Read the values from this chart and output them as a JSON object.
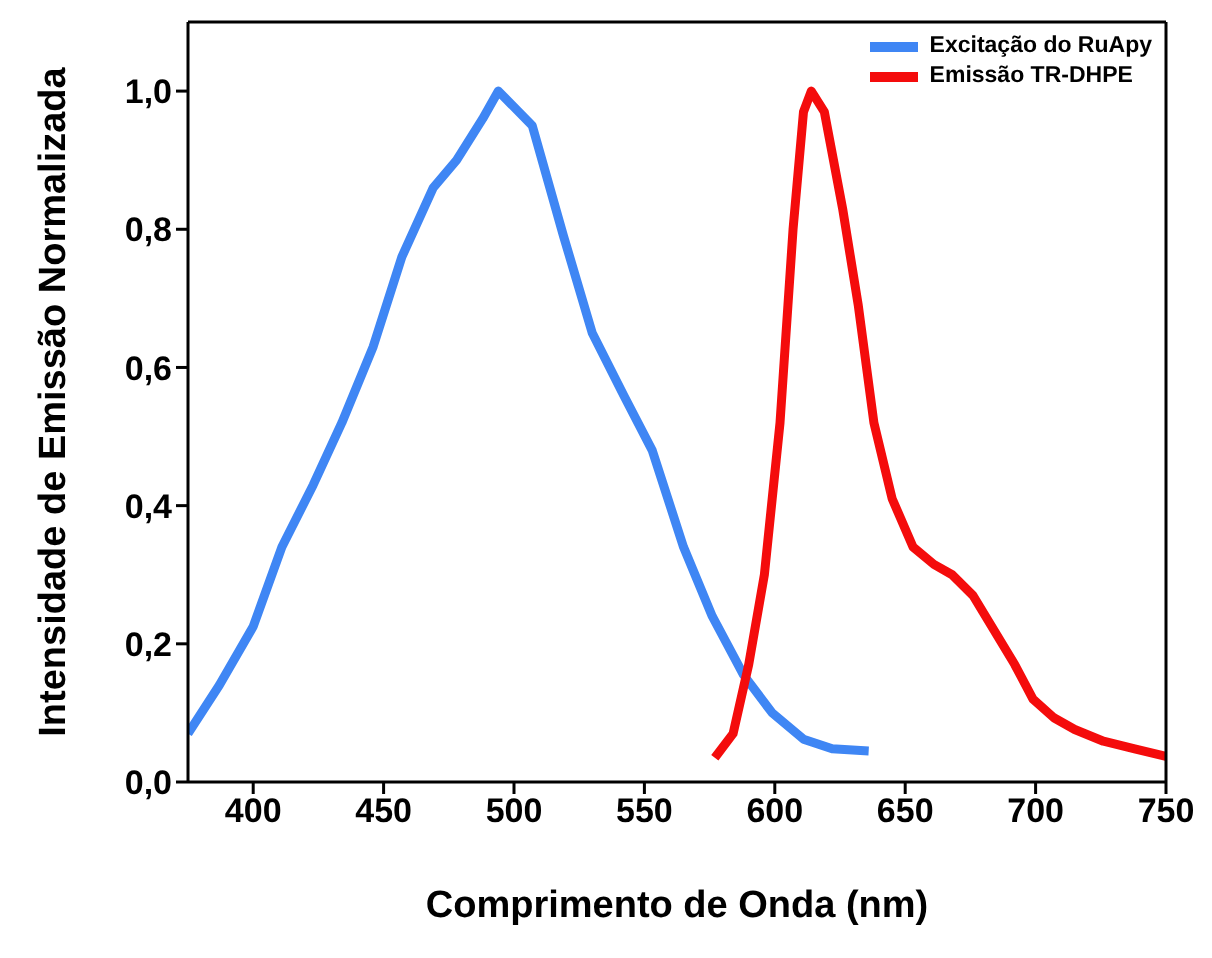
{
  "chart_data": {
    "type": "line",
    "xlabel": "Comprimento de Onda (nm)",
    "ylabel": "Intensidade de Emissão Normalizada",
    "xlim": [
      375,
      750
    ],
    "xticks": [
      400,
      450,
      500,
      550,
      600,
      650,
      700,
      750
    ],
    "ylim": [
      0,
      1.1
    ],
    "yticks": [
      {
        "value": 0,
        "label": "0,0"
      },
      {
        "value": 0.2,
        "label": "0,2"
      },
      {
        "value": 0.4,
        "label": "0,4"
      },
      {
        "value": 0.6,
        "label": "0,6"
      },
      {
        "value": 0.8,
        "label": "0,8"
      },
      {
        "value": 1,
        "label": "1,0"
      }
    ],
    "grid": false,
    "legend": "top right",
    "marker": "none",
    "line_style": "solid",
    "series": [
      {
        "name": "Excitação do RuApy",
        "color": "#3f86f4",
        "x": [
          375,
          387,
          400,
          411,
          423,
          434,
          446,
          457,
          469,
          478,
          488,
          494,
          507,
          519,
          530,
          542,
          553,
          565,
          576,
          588,
          599,
          611,
          622,
          636
        ],
        "values": [
          0.07,
          0.14,
          0.225,
          0.34,
          0.43,
          0.52,
          0.63,
          0.76,
          0.86,
          0.9,
          0.96,
          1.0,
          0.95,
          0.79,
          0.65,
          0.56,
          0.48,
          0.34,
          0.24,
          0.155,
          0.1,
          0.062,
          0.048,
          0.045
        ]
      },
      {
        "name": "Emissão TR-DHPE",
        "color": "#f40c0c",
        "x": [
          577,
          584,
          590,
          596,
          602,
          607,
          611,
          614,
          619,
          626,
          632,
          638,
          645,
          653,
          661,
          668,
          676,
          684,
          692,
          699,
          707,
          715,
          726,
          738,
          750
        ],
        "values": [
          0.035,
          0.07,
          0.17,
          0.3,
          0.52,
          0.8,
          0.97,
          1.0,
          0.97,
          0.83,
          0.69,
          0.52,
          0.41,
          0.34,
          0.315,
          0.3,
          0.27,
          0.22,
          0.17,
          0.12,
          0.093,
          0.076,
          0.059,
          0.048,
          0.037
        ]
      }
    ]
  }
}
